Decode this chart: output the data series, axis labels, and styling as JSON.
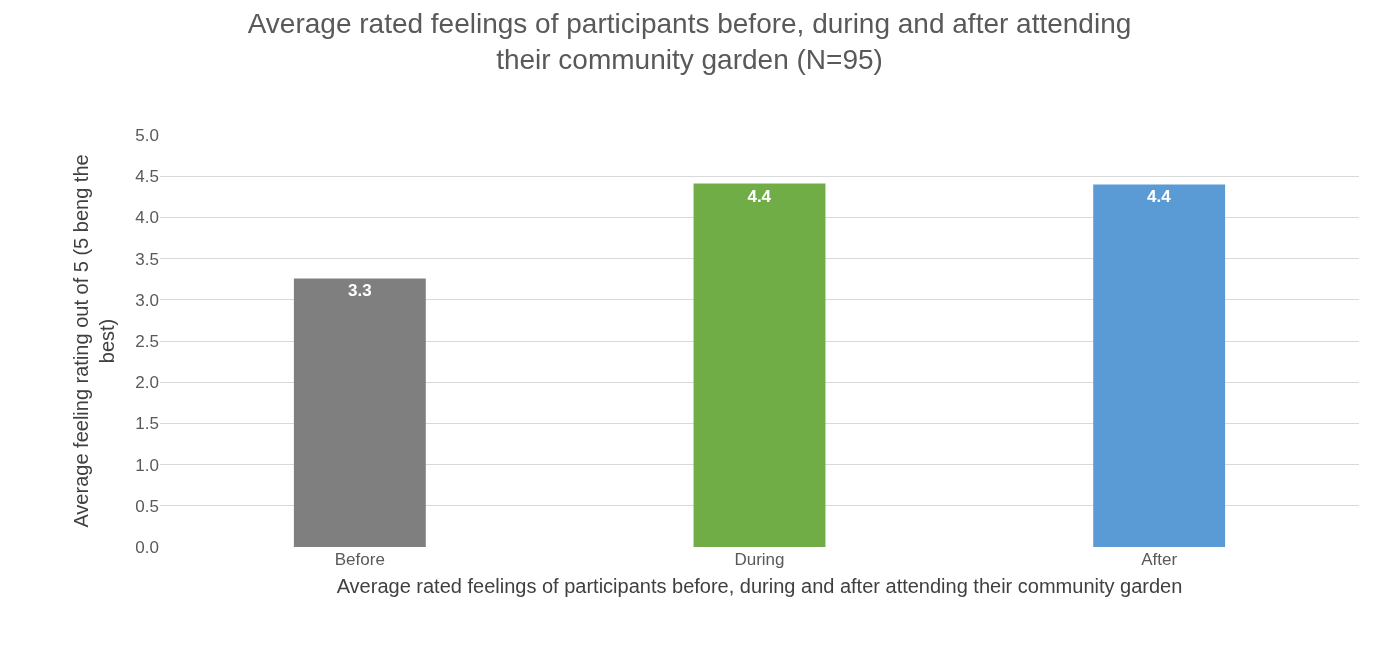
{
  "chart_data": {
    "type": "bar",
    "title": "Average rated feelings of participants before, during and after attending\ntheir community garden (N=95)",
    "xlabel": "Average rated feelings of participants before, during and after attending their community garden",
    "ylabel": "Average feeling rating out of 5 (5 beng the\nbest)",
    "categories": [
      "Before",
      "During",
      "After"
    ],
    "values": [
      3.26,
      4.41,
      4.4
    ],
    "value_labels": [
      "3.3",
      "4.4",
      "4.4"
    ],
    "colors": [
      "#7f7f7f",
      "#70ad47",
      "#5b9bd5"
    ],
    "ylim": [
      0,
      5
    ],
    "yticks": [
      {
        "value": 0,
        "label": "0.0"
      },
      {
        "value": 0.5,
        "label": "0.5"
      },
      {
        "value": 1,
        "label": "1.0"
      },
      {
        "value": 1.5,
        "label": "1.5"
      },
      {
        "value": 2,
        "label": "2.0"
      },
      {
        "value": 2.5,
        "label": "2.5"
      },
      {
        "value": 3,
        "label": "3.0"
      },
      {
        "value": 3.5,
        "label": "3.5"
      },
      {
        "value": 4,
        "label": "4.0"
      },
      {
        "value": 4.5,
        "label": "4.5"
      },
      {
        "value": 5,
        "label": "5.0"
      }
    ],
    "grid": "y"
  }
}
